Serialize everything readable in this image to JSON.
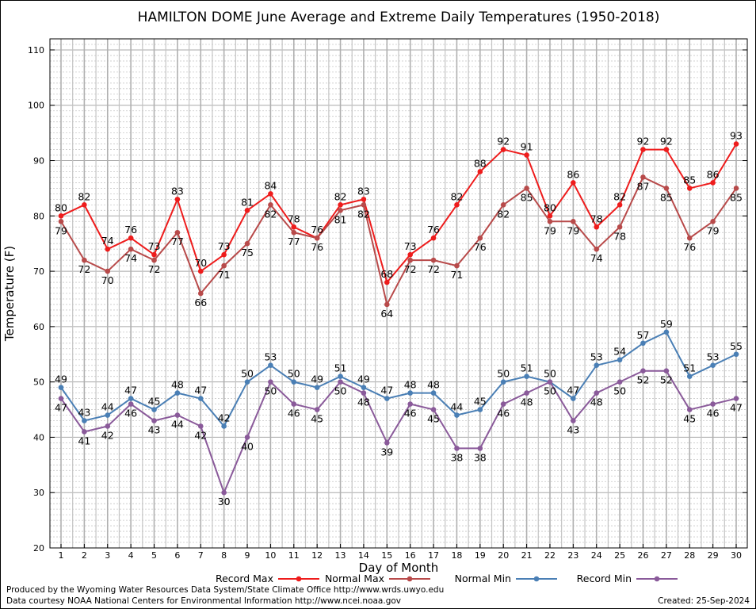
{
  "chart_data": {
    "type": "line",
    "title": "HAMILTON DOME June Average and Extreme Daily Temperatures (1950-2018)",
    "xlabel": "Day of Month",
    "ylabel": "Temperature (F)",
    "ylim": [
      20,
      112
    ],
    "yticks": [
      20,
      30,
      40,
      50,
      60,
      70,
      80,
      90,
      100,
      110
    ],
    "categories": [
      "1",
      "2",
      "3",
      "4",
      "5",
      "6",
      "7",
      "8",
      "9",
      "10",
      "11",
      "12",
      "13",
      "14",
      "15",
      "16",
      "17",
      "18",
      "19",
      "20",
      "21",
      "22",
      "23",
      "24",
      "25",
      "26",
      "27",
      "28",
      "29",
      "30"
    ],
    "grid": true,
    "legend_position": "bottom",
    "series": [
      {
        "name": "Record Max",
        "color": "#ee1c1c",
        "values": [
          80,
          82,
          74,
          76,
          73,
          83,
          70,
          73,
          81,
          84,
          78,
          76,
          82,
          83,
          68,
          73,
          76,
          82,
          88,
          92,
          91,
          80,
          86,
          78,
          82,
          92,
          92,
          85,
          86,
          93
        ],
        "labels_above": true
      },
      {
        "name": "Normal Max",
        "color": "#b84a4a",
        "values": [
          79,
          72,
          70,
          74,
          72,
          77,
          66,
          71,
          75,
          82,
          77,
          76,
          81,
          82,
          64,
          72,
          72,
          71,
          76,
          82,
          85,
          79,
          79,
          74,
          78,
          87,
          85,
          76,
          79,
          85
        ],
        "labels_above": false
      },
      {
        "name": "Normal Min",
        "color": "#4a7fb5",
        "values": [
          49,
          43,
          44,
          47,
          45,
          48,
          47,
          42,
          50,
          53,
          50,
          49,
          51,
          49,
          47,
          48,
          48,
          44,
          45,
          50,
          51,
          50,
          47,
          53,
          54,
          57,
          59,
          51,
          53,
          55
        ],
        "labels_above": true
      },
      {
        "name": "Record Min",
        "color": "#8a5a9a",
        "values": [
          47,
          41,
          42,
          46,
          43,
          44,
          42,
          30,
          40,
          50,
          46,
          45,
          50,
          48,
          39,
          46,
          45,
          38,
          38,
          46,
          48,
          50,
          43,
          48,
          50,
          52,
          52,
          45,
          46,
          47
        ],
        "labels_above": false
      }
    ]
  },
  "footer": {
    "produced_by": "Produced by the Wyoming Water Resources Data System/State Climate Office http://www.wrds.uwyo.edu",
    "courtesy": "Data courtesy NOAA National Centers for Environmental Information http://www.ncei.noaa.gov",
    "created": "Created:  25-Sep-2024"
  }
}
